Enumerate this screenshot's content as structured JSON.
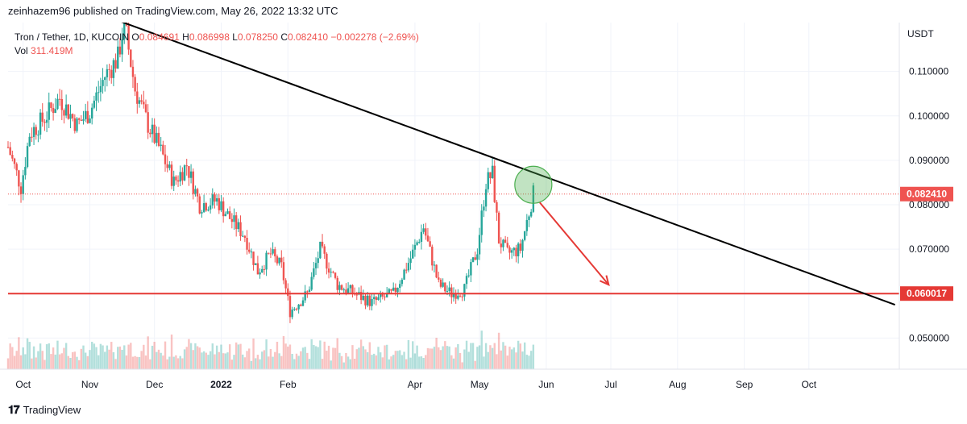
{
  "header": {
    "attribution": "zeinhazem96 published on TradingView.com, May 26, 2022 13:32 UTC"
  },
  "legend": {
    "symbol": "Tron / Tether, 1D, KUCOIN",
    "o_label": "O",
    "o_value": "0.084691",
    "h_label": "H",
    "h_value": "0.086998",
    "l_label": "L",
    "l_value": "0.078250",
    "c_label": "C",
    "c_value": "0.082410",
    "change": "−0.002278 (−2.69%)",
    "vol_label": "Vol",
    "vol_value": "311.419M"
  },
  "footer": {
    "brand": "TradingView"
  },
  "colors": {
    "up": "#26a69a",
    "down": "#ef5350",
    "trendline": "#000000",
    "support": "#e53935",
    "circle": "#4caf50"
  },
  "chart_data": {
    "type": "candlestick",
    "currency_label": "USDT",
    "y_axis_ticks": [
      "0.050000",
      "0.070000",
      "0.080000",
      "0.090000",
      "0.100000",
      "0.110000"
    ],
    "ylim": [
      0.043,
      0.121
    ],
    "x_axis_labels": [
      "Oct",
      "Nov",
      "Dec",
      "2022",
      "Feb",
      "Apr",
      "May",
      "Jun",
      "Jul",
      "Aug",
      "Sep",
      "Oct"
    ],
    "x_range": [
      "2021-09-24",
      "2022-11-12"
    ],
    "last_price": "0.082410",
    "support_price": "0.060017",
    "support_level": 0.060017,
    "trendline": {
      "from": {
        "date": "2021-11-11",
        "price": 0.122
      },
      "to": {
        "date": "2022-11-10",
        "price": 0.0575
      }
    },
    "highlight_circle": {
      "date": "2022-05-26",
      "price": 0.0845
    },
    "arrow": {
      "from": {
        "date": "2022-05-29",
        "price": 0.0805
      },
      "to": {
        "date": "2022-06-30",
        "price": 0.062
      }
    },
    "price_path": [
      [
        "2021-09-24",
        0.093
      ],
      [
        "2021-09-30",
        0.084
      ],
      [
        "2021-10-04",
        0.096
      ],
      [
        "2021-10-10",
        0.099
      ],
      [
        "2021-10-18",
        0.104
      ],
      [
        "2021-10-26",
        0.098
      ],
      [
        "2021-11-01",
        0.101
      ],
      [
        "2021-11-08",
        0.109
      ],
      [
        "2021-11-14",
        0.113
      ],
      [
        "2021-11-17",
        0.121
      ],
      [
        "2021-11-22",
        0.106
      ],
      [
        "2021-11-28",
        0.098
      ],
      [
        "2021-12-04",
        0.092
      ],
      [
        "2021-12-10",
        0.085
      ],
      [
        "2021-12-16",
        0.089
      ],
      [
        "2021-12-22",
        0.08
      ],
      [
        "2021-12-30",
        0.081
      ],
      [
        "2022-01-05",
        0.077
      ],
      [
        "2022-01-12",
        0.073
      ],
      [
        "2022-01-18",
        0.065
      ],
      [
        "2022-01-24",
        0.069
      ],
      [
        "2022-01-29",
        0.066
      ],
      [
        "2022-02-02",
        0.056
      ],
      [
        "2022-02-10",
        0.06
      ],
      [
        "2022-02-16",
        0.07
      ],
      [
        "2022-02-24",
        0.062
      ],
      [
        "2022-03-04",
        0.06
      ],
      [
        "2022-03-12",
        0.058
      ],
      [
        "2022-03-22",
        0.06
      ],
      [
        "2022-03-30",
        0.068
      ],
      [
        "2022-04-05",
        0.075
      ],
      [
        "2022-04-12",
        0.062
      ],
      [
        "2022-04-18",
        0.06
      ],
      [
        "2022-04-24",
        0.061
      ],
      [
        "2022-04-30",
        0.07
      ],
      [
        "2022-05-04",
        0.085
      ],
      [
        "2022-05-07",
        0.087
      ],
      [
        "2022-05-10",
        0.072
      ],
      [
        "2022-05-14",
        0.069
      ],
      [
        "2022-05-20",
        0.07
      ],
      [
        "2022-05-26",
        0.0824
      ]
    ]
  }
}
